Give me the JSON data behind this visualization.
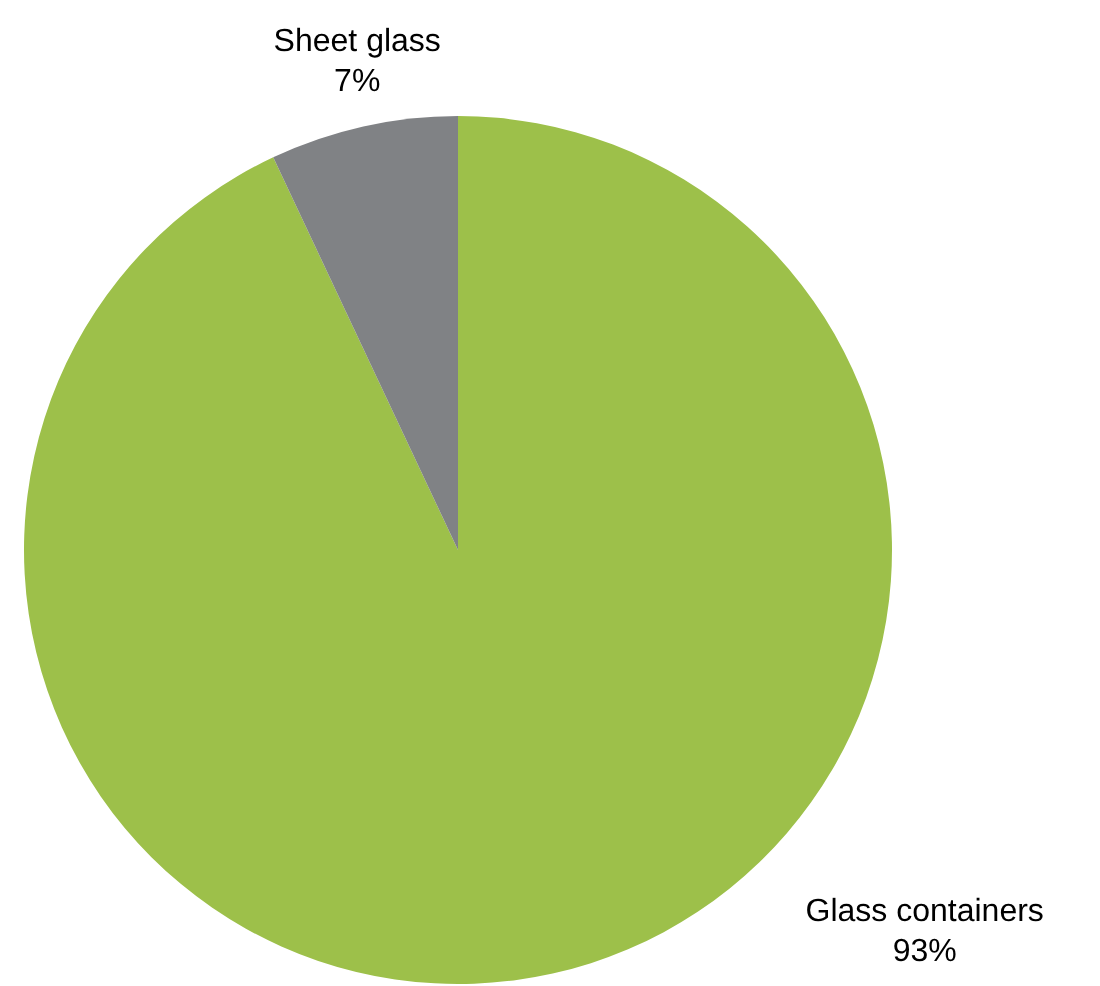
{
  "chart_data": {
    "type": "pie",
    "categories": [
      "Glass containers",
      "Sheet glass"
    ],
    "values": [
      93,
      7
    ],
    "colors": [
      "#9dc04a",
      "#808285"
    ],
    "value_labels": [
      "93%",
      "7%"
    ]
  }
}
